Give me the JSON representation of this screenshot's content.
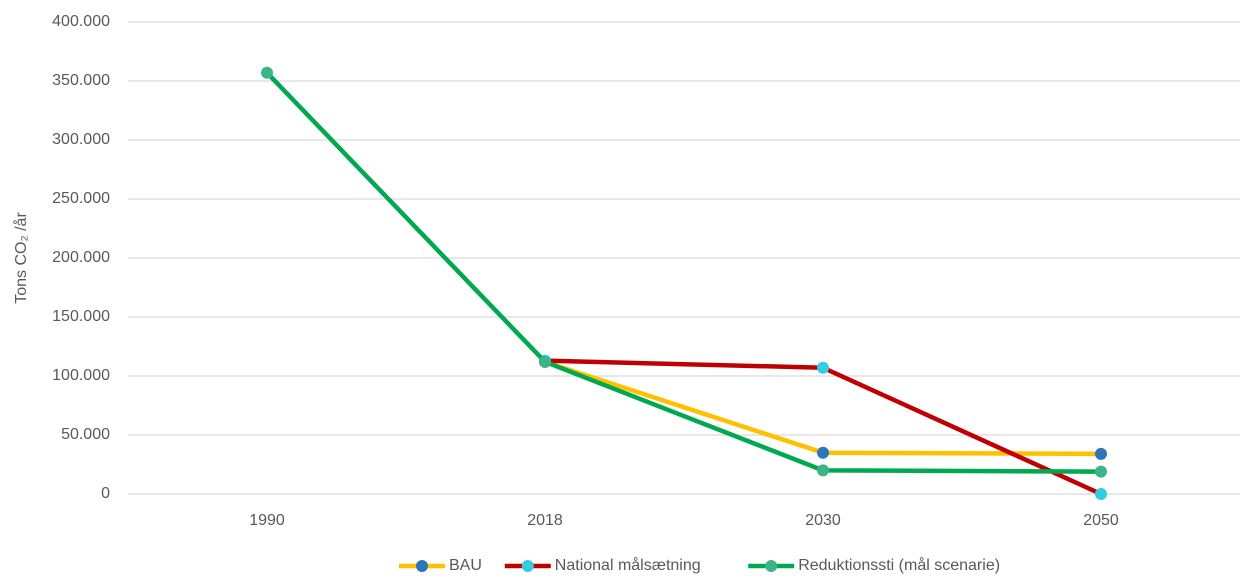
{
  "chart_data": {
    "type": "line",
    "ylabel": "Tons CO₂ /år",
    "categories": [
      "1990",
      "2018",
      "2030",
      "2050"
    ],
    "series": [
      {
        "name": "BAU",
        "color": "#ffc000",
        "marker_color": "#2e75b6",
        "values": [
          null,
          112000,
          35000,
          34000
        ]
      },
      {
        "name": "National målsætning",
        "color": "#c00000",
        "marker_color": "#33cce0",
        "values": [
          null,
          113000,
          107000,
          0
        ]
      },
      {
        "name": "Reduktionssti (mål scenarie)",
        "color": "#00a84f",
        "marker_color": "#3cb48a",
        "values": [
          357000,
          112000,
          20000,
          19000
        ]
      }
    ],
    "ylim": [
      0,
      400000
    ],
    "yticks": [
      0,
      {
        "value": 50000,
        "label": "50.000"
      },
      {
        "value": 100000,
        "label": "100.000"
      },
      {
        "value": 150000,
        "label": "150.000"
      },
      {
        "value": 200000,
        "label": "200.000"
      },
      {
        "value": 250000,
        "label": "250.000"
      },
      {
        "value": 300000,
        "label": "300.000"
      },
      {
        "value": 350000,
        "label": "350.000"
      },
      {
        "value": 400000,
        "label": "400.000"
      }
    ],
    "grid": true,
    "legend": "bottom"
  }
}
